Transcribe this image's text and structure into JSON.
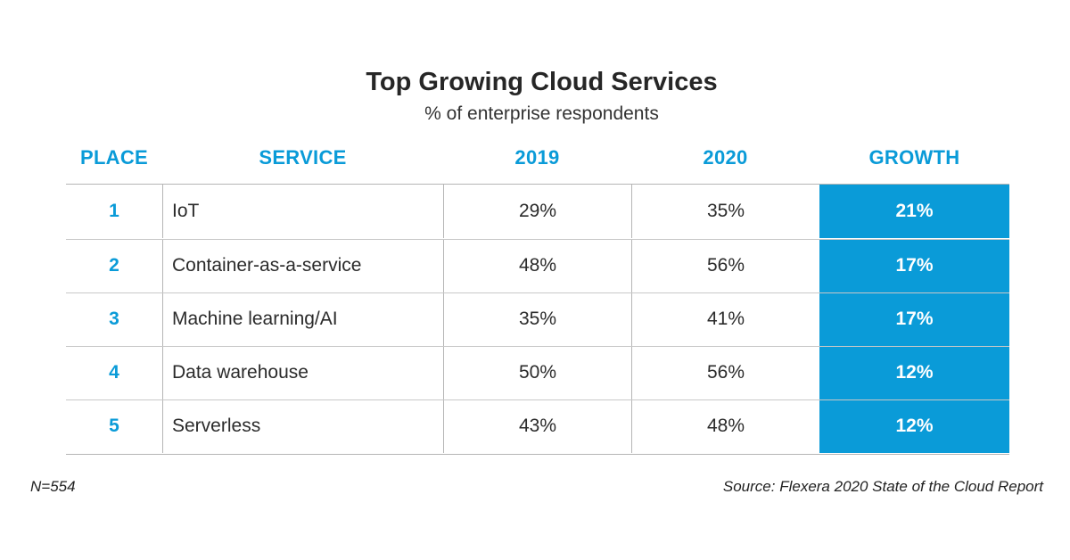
{
  "chart_data": {
    "type": "table",
    "title": "Top Growing Cloud Services",
    "subtitle": "% of enterprise respondents",
    "columns": [
      "PLACE",
      "SERVICE",
      "2019",
      "2020",
      "GROWTH"
    ],
    "rows": [
      {
        "place": "1",
        "service": "IoT",
        "y2019": "29%",
        "y2020": "35%",
        "growth": "21%"
      },
      {
        "place": "2",
        "service": "Container-as-a-service",
        "y2019": "48%",
        "y2020": "56%",
        "growth": "17%"
      },
      {
        "place": "3",
        "service": "Machine learning/AI",
        "y2019": "35%",
        "y2020": "41%",
        "growth": "17%"
      },
      {
        "place": "4",
        "service": "Data warehouse",
        "y2019": "50%",
        "y2020": "56%",
        "growth": "12%"
      },
      {
        "place": "5",
        "service": "Serverless",
        "y2019": "43%",
        "y2020": "48%",
        "growth": "12%"
      }
    ],
    "note": "N=554",
    "source": "Source: Flexera 2020 State of the Cloud Report"
  },
  "colors": {
    "accent": "#0a9bd8",
    "growth_text": "#ffffff",
    "rule": "#b5b5b5"
  }
}
